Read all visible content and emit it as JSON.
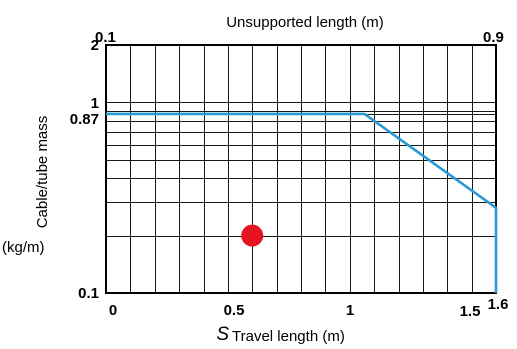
{
  "chart_data": {
    "type": "line",
    "top_axis": {
      "label": "Unsupported length (m)",
      "tick_labels": [
        "0.1",
        "0.9"
      ]
    },
    "bottom_axis": {
      "symbol": "S",
      "label": "Travel length (m)",
      "range": [
        0,
        1.6
      ],
      "tick_labels": [
        "0",
        "0.5",
        "1",
        "1.5",
        "1.6"
      ],
      "ticks": [
        0,
        0.5,
        1,
        1.5,
        1.6
      ]
    },
    "left_axis": {
      "label_line1": "Cable/tube mass",
      "label_line2": "(kg/m)",
      "scale": "log",
      "range": [
        0.1,
        2
      ],
      "tick_labels": [
        "0.1",
        "0.87",
        "1",
        "2"
      ],
      "ticks": [
        0.1,
        0.87,
        1,
        2
      ]
    },
    "grid": true,
    "series": [
      {
        "color": "#2a9ad6",
        "x": [
          0,
          1.06,
          1.6,
          1.6
        ],
        "y": [
          0.87,
          0.87,
          0.28,
          0.1
        ]
      }
    ],
    "points": [
      {
        "x": 0.6,
        "y": 0.2,
        "color": "#e41420"
      }
    ]
  }
}
